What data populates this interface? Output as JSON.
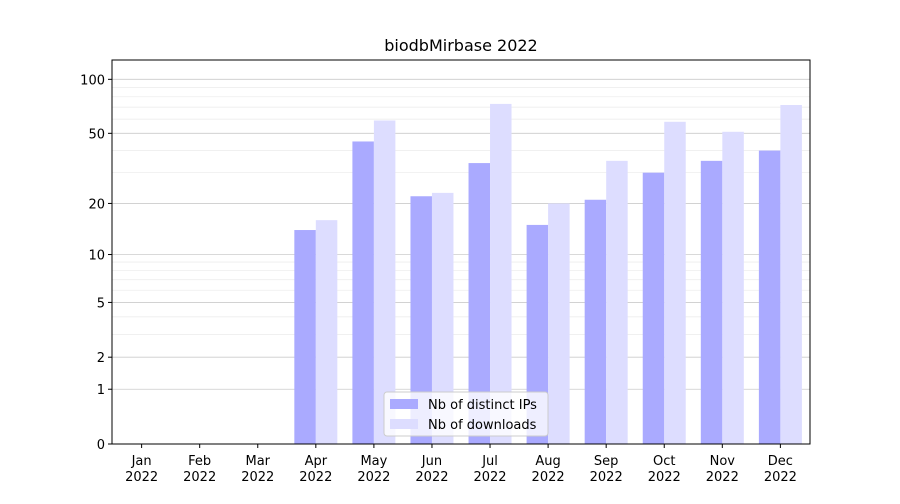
{
  "chart_data": {
    "type": "bar",
    "title": "biodbMirbase 2022",
    "categories": [
      [
        "Jan",
        "2022"
      ],
      [
        "Feb",
        "2022"
      ],
      [
        "Mar",
        "2022"
      ],
      [
        "Apr",
        "2022"
      ],
      [
        "May",
        "2022"
      ],
      [
        "Jun",
        "2022"
      ],
      [
        "Jul",
        "2022"
      ],
      [
        "Aug",
        "2022"
      ],
      [
        "Sep",
        "2022"
      ],
      [
        "Oct",
        "2022"
      ],
      [
        "Nov",
        "2022"
      ],
      [
        "Dec",
        "2022"
      ]
    ],
    "series": [
      {
        "name": "Nb of distinct IPs",
        "color": "#aaaaff",
        "values": [
          0,
          0,
          0,
          14,
          45,
          22,
          34,
          15,
          21,
          30,
          35,
          40
        ]
      },
      {
        "name": "Nb of downloads",
        "color": "#ddddff",
        "values": [
          0,
          0,
          0,
          16,
          59,
          23,
          73,
          20,
          35,
          58,
          51,
          72
        ]
      }
    ],
    "yscale": "log1p",
    "ylim": [
      0,
      128
    ],
    "yticks": [
      0,
      1,
      2,
      5,
      10,
      20,
      50,
      100
    ],
    "minor_yticks": [
      3,
      4,
      6,
      7,
      8,
      9,
      30,
      40,
      60,
      70,
      80,
      90
    ],
    "grid": true,
    "legend": "lower center"
  }
}
